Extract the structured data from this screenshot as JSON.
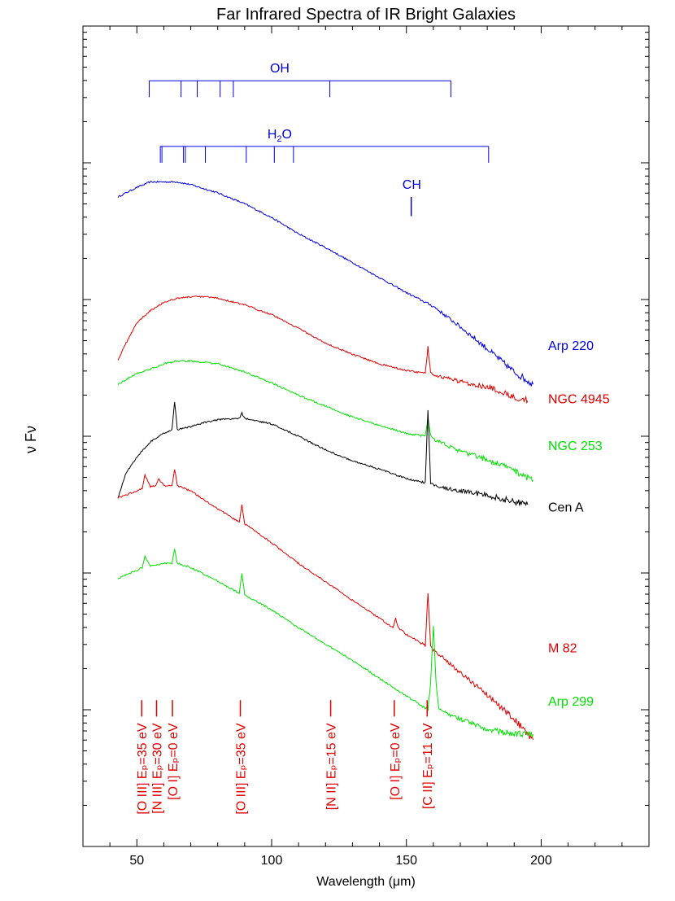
{
  "chart_data": {
    "type": "line",
    "title": "Far Infrared Spectra of IR Bright Galaxies",
    "xlabel": "Wavelength (μm)",
    "ylabel": "ν Fν",
    "xlim": [
      30,
      240
    ],
    "x_ticks": [
      50,
      100,
      150,
      200
    ],
    "ylim_log": [
      0,
      6
    ],
    "colors": {
      "blue": "#0000dd",
      "red": "#e00000",
      "green": "#00e000",
      "black": "#000000"
    },
    "series": [
      {
        "name": "Arp 220",
        "color": "#0000dd",
        "x": [
          43,
          50,
          55,
          60,
          65,
          70,
          80,
          90,
          100,
          110,
          120,
          130,
          140,
          150,
          160,
          170,
          180,
          190,
          197
        ],
        "y": [
          4.75,
          4.82,
          4.86,
          4.86,
          4.86,
          4.84,
          4.78,
          4.7,
          4.6,
          4.48,
          4.38,
          4.27,
          4.16,
          4.05,
          3.95,
          3.8,
          3.64,
          3.47,
          3.38
        ]
      },
      {
        "name": "NGC 4945",
        "color": "#e00000",
        "x": [
          43,
          47,
          50,
          55,
          60,
          65,
          70,
          75,
          80,
          90,
          100,
          110,
          120,
          130,
          140,
          150,
          157,
          158,
          159,
          160,
          170,
          180,
          190,
          195
        ],
        "y": [
          3.56,
          3.72,
          3.83,
          3.92,
          3.98,
          4.01,
          4.02,
          4.02,
          4.01,
          3.96,
          3.89,
          3.79,
          3.68,
          3.6,
          3.53,
          3.48,
          3.46,
          3.65,
          3.46,
          3.45,
          3.4,
          3.36,
          3.29,
          3.26
        ]
      },
      {
        "name": "NGC 253",
        "color": "#00e000",
        "x": [
          43,
          50,
          55,
          60,
          65,
          70,
          80,
          90,
          100,
          110,
          120,
          130,
          140,
          150,
          157,
          158,
          159,
          160,
          170,
          180,
          190,
          197
        ],
        "y": [
          3.38,
          3.46,
          3.49,
          3.53,
          3.55,
          3.55,
          3.53,
          3.47,
          3.39,
          3.3,
          3.22,
          3.14,
          3.08,
          3.02,
          3.0,
          3.14,
          3.0,
          2.98,
          2.89,
          2.83,
          2.75,
          2.68
        ]
      },
      {
        "name": "Cen A",
        "color": "#000000",
        "x": [
          43,
          46,
          50,
          55,
          60,
          63,
          64,
          65,
          70,
          75,
          80,
          88,
          89,
          90,
          100,
          110,
          120,
          130,
          140,
          150,
          157,
          158,
          159,
          160,
          170,
          180,
          190,
          195
        ],
        "y": [
          2.55,
          2.73,
          2.85,
          2.96,
          3.02,
          3.05,
          3.25,
          3.05,
          3.07,
          3.1,
          3.12,
          3.13,
          3.17,
          3.13,
          3.09,
          3.0,
          2.9,
          2.82,
          2.76,
          2.69,
          2.66,
          3.2,
          2.66,
          2.64,
          2.6,
          2.57,
          2.52,
          2.5
        ]
      },
      {
        "name": "M 82",
        "color": "#e00000",
        "x": [
          43,
          50,
          52,
          53,
          55,
          57,
          58,
          60,
          63,
          64,
          65,
          70,
          80,
          88,
          89,
          90,
          100,
          110,
          122,
          130,
          140,
          145,
          146,
          147,
          150,
          157,
          158,
          159,
          160,
          170,
          180,
          190,
          197
        ],
        "y": [
          2.55,
          2.6,
          2.62,
          2.72,
          2.63,
          2.64,
          2.69,
          2.64,
          2.64,
          2.76,
          2.64,
          2.6,
          2.47,
          2.37,
          2.5,
          2.36,
          2.22,
          2.07,
          1.91,
          1.8,
          1.67,
          1.6,
          1.67,
          1.6,
          1.55,
          1.47,
          1.86,
          1.47,
          1.44,
          1.27,
          1.11,
          0.93,
          0.78
        ]
      },
      {
        "name": "Arp 299",
        "color": "#00e000",
        "x": [
          43,
          50,
          52,
          53,
          55,
          60,
          63,
          64,
          65,
          70,
          80,
          88,
          89,
          90,
          100,
          110,
          120,
          130,
          140,
          150,
          158,
          159,
          160,
          161,
          162,
          170,
          180,
          190,
          197
        ],
        "y": [
          1.96,
          2.02,
          2.04,
          2.12,
          2.05,
          2.07,
          2.07,
          2.17,
          2.07,
          2.04,
          1.94,
          1.85,
          2.0,
          1.84,
          1.73,
          1.6,
          1.48,
          1.36,
          1.23,
          1.1,
          1.0,
          1.2,
          1.62,
          1.2,
          1.0,
          0.93,
          0.86,
          0.82,
          0.82
        ]
      }
    ],
    "molecular_lines": [
      {
        "label": "OH",
        "color": "#0000dd",
        "bar_y": 5.6,
        "tick_drop": 0.12,
        "label_y": 5.66,
        "label_x": 103,
        "x": [
          54.6,
          66.4,
          72.4,
          80.9,
          85.8,
          121.6,
          166.5
        ]
      },
      {
        "label_main": "H",
        "label_sub": "2",
        "label_tail": "O",
        "color": "#0000dd",
        "bar_y": 5.12,
        "tick_drop": 0.12,
        "label_y": 5.18,
        "label_x": 103,
        "x": [
          58.7,
          59.3,
          67.3,
          68.0,
          75.4,
          90.6,
          101.0,
          108.1,
          180.5
        ]
      },
      {
        "label": "CH",
        "color": "#0000dd",
        "x": [
          151.8
        ],
        "tick_top": 4.75,
        "tick_bottom": 4.61,
        "label_y": 4.81,
        "label_x": 152
      }
    ],
    "ionic_lines": [
      {
        "label": "[O III] Eₚ=35 eV",
        "x": 51.8,
        "color": "#e00000"
      },
      {
        "label": "[N III] Eₚ=30 eV",
        "x": 57.3,
        "color": "#e00000"
      },
      {
        "label": "[O I] Eₚ=0 eV",
        "x": 63.2,
        "color": "#e00000"
      },
      {
        "label": "[O III] Eₚ=35 eV",
        "x": 88.4,
        "color": "#e00000"
      },
      {
        "label": "[N II] Eₚ=15 eV",
        "x": 121.9,
        "color": "#e00000"
      },
      {
        "label": "[O I] Eₚ=0 eV",
        "x": 145.5,
        "color": "#e00000"
      },
      {
        "label": "[C II] Eₚ=11 eV",
        "x": 157.7,
        "color": "#e00000"
      }
    ],
    "ionic_tick_y": [
      0.95,
      1.07
    ],
    "legend": [
      {
        "label": "Arp 220",
        "color": "#0000dd",
        "y": 3.63
      },
      {
        "label": "NGC 4945",
        "color": "#e00000",
        "y": 3.24
      },
      {
        "label": "NGC 253",
        "color": "#00e000",
        "y": 2.9
      },
      {
        "label": "Cen A",
        "color": "#000000",
        "y": 2.45
      },
      {
        "label": "M 82",
        "color": "#e00000",
        "y": 1.42
      },
      {
        "label": "Arp 299",
        "color": "#00e000",
        "y": 1.03
      }
    ]
  }
}
